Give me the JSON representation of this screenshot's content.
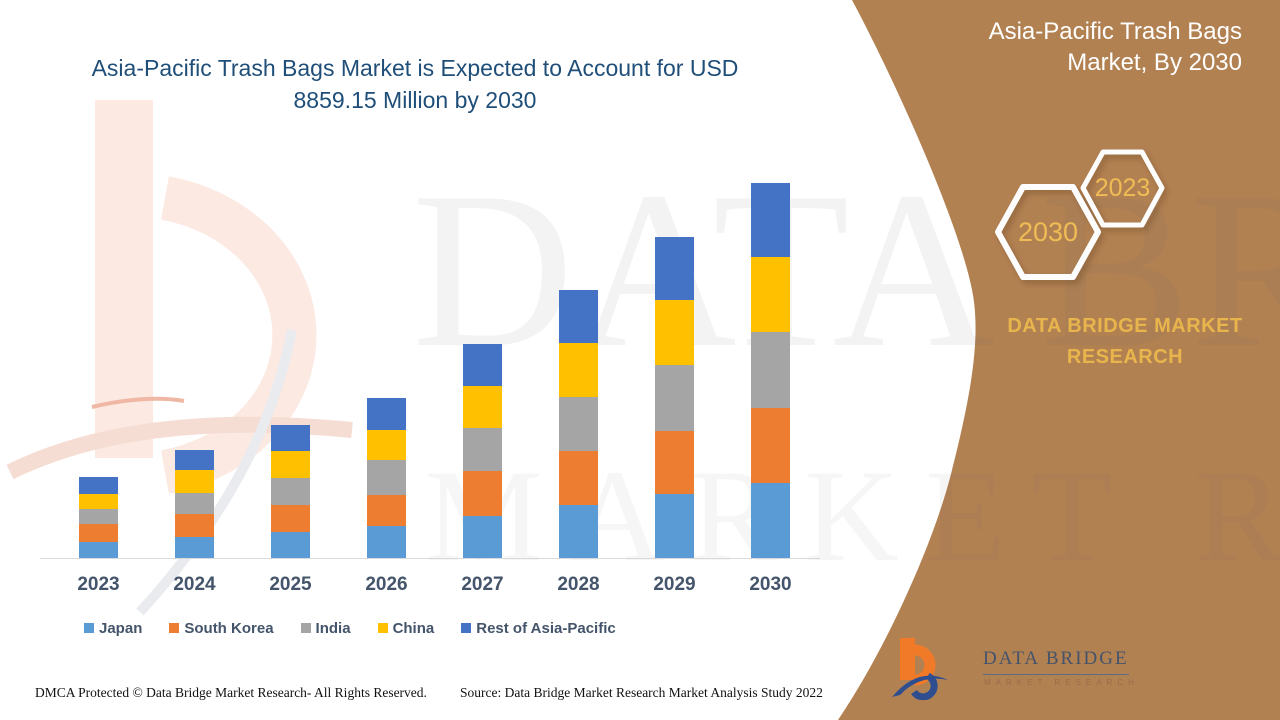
{
  "header": {
    "title_line1": "Asia-Pacific Trash Bags Market is Expected to Account for USD",
    "title_line2": "8859.15 Million by 2030",
    "title_color": "#1F4E79"
  },
  "side_panel": {
    "bg_color": "#B28152",
    "title_line1": "Asia-Pacific Trash Bags",
    "title_line2": "Market, By 2030",
    "hexagons": [
      {
        "label": "2030"
      },
      {
        "label": "2023"
      }
    ],
    "brand_line1": "DATA BRIDGE MARKET",
    "brand_line2": "RESEARCH",
    "accent_gold": "#E8B54D"
  },
  "chart_data": {
    "type": "bar",
    "stacked": true,
    "title": "Asia-Pacific Trash Bags Market is Expected to Account for USD 8859.15 Million by 2030",
    "unit": "USD Million",
    "categories": [
      "2023",
      "2024",
      "2025",
      "2026",
      "2027",
      "2028",
      "2029",
      "2030"
    ],
    "series": [
      {
        "name": "Japan",
        "color": "#5B9BD5",
        "values": [
          378,
          496,
          614,
          748,
          998,
          1251,
          1511,
          1777
        ]
      },
      {
        "name": "South Korea",
        "color": "#ED7D31",
        "values": [
          418,
          543,
          644,
          732,
          1046,
          1268,
          1487,
          1770
        ]
      },
      {
        "name": "India",
        "color": "#A5A5A5",
        "values": [
          354,
          489,
          630,
          826,
          1031,
          1291,
          1551,
          1787
        ]
      },
      {
        "name": "China",
        "color": "#FFC000",
        "values": [
          371,
          559,
          630,
          725,
          975,
          1275,
          1534,
          1763
        ]
      },
      {
        "name": "Rest of Asia-Pacific",
        "color": "#4472C4",
        "values": [
          385,
          465,
          630,
          739,
          1008,
          1234,
          1504,
          1762
        ]
      }
    ],
    "totals": [
      1906,
      2552,
      3148,
      3770,
      5058,
      6319,
      7587,
      8859.15
    ],
    "values_estimated_from_pixels": true,
    "y_axis_shown": false,
    "grid": false,
    "legend_position": "bottom",
    "axis_label_color": "#44546A",
    "baseline_color": "#D9D9D9"
  },
  "watermark": {
    "line1": "DATA BRIDGE",
    "line2": "MARKET RESEARCH"
  },
  "footer": {
    "dmca": "DMCA Protected © Data Bridge Market Research- All Rights Reserved.",
    "source": "Source: Data Bridge Market Research Market Analysis Study 2022"
  },
  "logo": {
    "name": "DATA BRIDGE",
    "subname": "MARKET RESEARCH"
  }
}
